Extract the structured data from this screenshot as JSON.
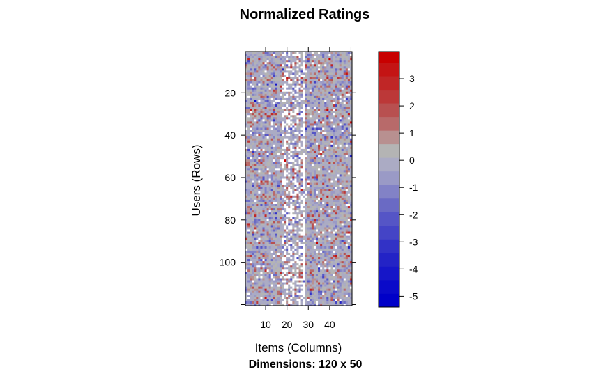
{
  "chart_data": {
    "type": "heatmap",
    "title": "Normalized Ratings",
    "xlabel": "Items (Columns)",
    "ylabel": "Users (Rows)",
    "sub": "Dimensions: 120 x 50",
    "nrows": 120,
    "ncols": 50,
    "x_ticks": [
      10,
      20,
      30,
      40
    ],
    "y_ticks": [
      20,
      40,
      60,
      80,
      100
    ],
    "zlim": [
      -5.4,
      4
    ],
    "colorbar_ticks": [
      3,
      2,
      1,
      0,
      -1,
      -2,
      -3,
      -4,
      -5
    ],
    "colorbar_levels": [
      {
        "lo": -5.4,
        "hi": -4.9,
        "color": "#0000c8"
      },
      {
        "lo": -4.9,
        "hi": -4.4,
        "color": "#0a0ac9"
      },
      {
        "lo": -4.4,
        "hi": -3.9,
        "color": "#1616c8"
      },
      {
        "lo": -3.9,
        "hi": -3.4,
        "color": "#2323c6"
      },
      {
        "lo": -3.4,
        "hi": -2.9,
        "color": "#3232c6"
      },
      {
        "lo": -2.9,
        "hi": -2.4,
        "color": "#4444c6"
      },
      {
        "lo": -2.4,
        "hi": -1.9,
        "color": "#5555c6"
      },
      {
        "lo": -1.9,
        "hi": -1.4,
        "color": "#6a6ac4"
      },
      {
        "lo": -1.4,
        "hi": -0.9,
        "color": "#8282c6"
      },
      {
        "lo": -0.9,
        "hi": -0.4,
        "color": "#9a9ac6"
      },
      {
        "lo": -0.4,
        "hi": 0.1,
        "color": "#ababc4"
      },
      {
        "lo": 0.1,
        "hi": 0.6,
        "color": "#b4b4b4"
      },
      {
        "lo": 0.6,
        "hi": 1.1,
        "color": "#b89090"
      },
      {
        "lo": 1.1,
        "hi": 1.6,
        "color": "#b86a6a"
      },
      {
        "lo": 1.6,
        "hi": 2.1,
        "color": "#b85050"
      },
      {
        "lo": 2.1,
        "hi": 2.6,
        "color": "#bc3838"
      },
      {
        "lo": 2.6,
        "hi": 3.1,
        "color": "#c02626"
      },
      {
        "lo": 3.1,
        "hi": 3.6,
        "color": "#c41414"
      },
      {
        "lo": 3.6,
        "hi": 4.0,
        "color": "#c80000"
      }
    ],
    "missing_color": "#ffffff",
    "description": "Matrix of normalized ratings; white cells are missing entries. Denser missing region around columns 18-28."
  }
}
